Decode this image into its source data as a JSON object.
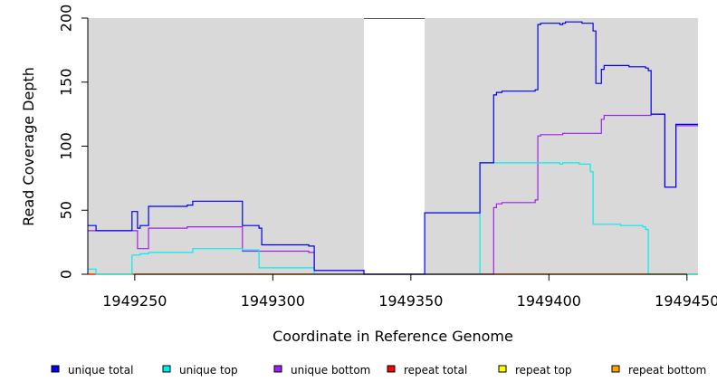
{
  "chart_data": {
    "type": "line",
    "title": "",
    "xlabel": "Coordinate in Reference Genome",
    "ylabel": "Read Coverage Depth",
    "xlim": [
      1949233,
      1949454
    ],
    "ylim": [
      0,
      200
    ],
    "x_ticks": [
      1949250,
      1949300,
      1949350,
      1949400,
      1949450
    ],
    "x_tick_labels": [
      "1949250",
      "1949300",
      "1949350",
      "1949400",
      "1949450"
    ],
    "y_ticks": [
      0,
      50,
      100,
      150,
      200
    ],
    "y_tick_labels": [
      "0",
      "50",
      "100",
      "150",
      "200"
    ],
    "background": "#d9d9d9",
    "grid": false,
    "legend_position": "bottom",
    "uncovered_regions": [
      [
        1949333,
        1949355
      ]
    ],
    "series": [
      {
        "name": "unique total",
        "color": "#0000ee",
        "points": [
          [
            1949233,
            38
          ],
          [
            1949236,
            38
          ],
          [
            1949236,
            34
          ],
          [
            1949249,
            34
          ],
          [
            1949249,
            49
          ],
          [
            1949251,
            49
          ],
          [
            1949251,
            36
          ],
          [
            1949252,
            36
          ],
          [
            1949252,
            38
          ],
          [
            1949255,
            38
          ],
          [
            1949255,
            53
          ],
          [
            1949269,
            53
          ],
          [
            1949269,
            54
          ],
          [
            1949271,
            54
          ],
          [
            1949271,
            57
          ],
          [
            1949289,
            57
          ],
          [
            1949289,
            38
          ],
          [
            1949295,
            38
          ],
          [
            1949295,
            36
          ],
          [
            1949296,
            36
          ],
          [
            1949296,
            23
          ],
          [
            1949313,
            23
          ],
          [
            1949313,
            22
          ],
          [
            1949315,
            22
          ],
          [
            1949315,
            3
          ],
          [
            1949333,
            3
          ],
          [
            1949333,
            0
          ],
          [
            1949355,
            0
          ],
          [
            1949355,
            48
          ],
          [
            1949375,
            48
          ],
          [
            1949375,
            87
          ],
          [
            1949380,
            87
          ],
          [
            1949380,
            140
          ],
          [
            1949381,
            140
          ],
          [
            1949381,
            142
          ],
          [
            1949383,
            142
          ],
          [
            1949383,
            143
          ],
          [
            1949395,
            143
          ],
          [
            1949395,
            144
          ],
          [
            1949396,
            144
          ],
          [
            1949396,
            195
          ],
          [
            1949397,
            195
          ],
          [
            1949397,
            196
          ],
          [
            1949404,
            196
          ],
          [
            1949404,
            195
          ],
          [
            1949405,
            195
          ],
          [
            1949405,
            196
          ],
          [
            1949406,
            196
          ],
          [
            1949406,
            197
          ],
          [
            1949412,
            197
          ],
          [
            1949412,
            196
          ],
          [
            1949416,
            196
          ],
          [
            1949416,
            190
          ],
          [
            1949417,
            190
          ],
          [
            1949417,
            149
          ],
          [
            1949419,
            149
          ],
          [
            1949419,
            160
          ],
          [
            1949420,
            160
          ],
          [
            1949420,
            163
          ],
          [
            1949429,
            163
          ],
          [
            1949429,
            162
          ],
          [
            1949435,
            162
          ],
          [
            1949435,
            161
          ],
          [
            1949436,
            161
          ],
          [
            1949436,
            159
          ],
          [
            1949437,
            159
          ],
          [
            1949437,
            125
          ],
          [
            1949442,
            125
          ],
          [
            1949442,
            68
          ],
          [
            1949446,
            68
          ],
          [
            1949446,
            117
          ],
          [
            1949454,
            117
          ]
        ]
      },
      {
        "name": "unique top",
        "color": "#00eeee",
        "points": [
          [
            1949233,
            4
          ],
          [
            1949236,
            4
          ],
          [
            1949236,
            0
          ],
          [
            1949249,
            0
          ],
          [
            1949249,
            15
          ],
          [
            1949252,
            15
          ],
          [
            1949252,
            16
          ],
          [
            1949255,
            16
          ],
          [
            1949255,
            17
          ],
          [
            1949271,
            17
          ],
          [
            1949271,
            20
          ],
          [
            1949289,
            20
          ],
          [
            1949289,
            19
          ],
          [
            1949295,
            19
          ],
          [
            1949295,
            5
          ],
          [
            1949315,
            5
          ],
          [
            1949315,
            0
          ],
          [
            1949375,
            0
          ],
          [
            1949375,
            87
          ],
          [
            1949404,
            87
          ],
          [
            1949404,
            86
          ],
          [
            1949405,
            86
          ],
          [
            1949405,
            87
          ],
          [
            1949411,
            87
          ],
          [
            1949411,
            86
          ],
          [
            1949415,
            86
          ],
          [
            1949415,
            80
          ],
          [
            1949416,
            80
          ],
          [
            1949416,
            39
          ],
          [
            1949426,
            39
          ],
          [
            1949426,
            38
          ],
          [
            1949434,
            38
          ],
          [
            1949434,
            37
          ],
          [
            1949435,
            37
          ],
          [
            1949435,
            35
          ],
          [
            1949436,
            35
          ],
          [
            1949436,
            0
          ],
          [
            1949454,
            0
          ]
        ]
      },
      {
        "name": "unique bottom",
        "color": "#a020f0",
        "points": [
          [
            1949233,
            34
          ],
          [
            1949251,
            34
          ],
          [
            1949251,
            20
          ],
          [
            1949255,
            20
          ],
          [
            1949255,
            36
          ],
          [
            1949269,
            36
          ],
          [
            1949269,
            37
          ],
          [
            1949289,
            37
          ],
          [
            1949289,
            18
          ],
          [
            1949313,
            18
          ],
          [
            1949313,
            17
          ],
          [
            1949315,
            17
          ],
          [
            1949315,
            3
          ],
          [
            1949333,
            3
          ],
          [
            1949333,
            0
          ],
          [
            1949380,
            0
          ],
          [
            1949380,
            52
          ],
          [
            1949381,
            52
          ],
          [
            1949381,
            55
          ],
          [
            1949383,
            55
          ],
          [
            1949383,
            56
          ],
          [
            1949395,
            56
          ],
          [
            1949395,
            58
          ],
          [
            1949396,
            58
          ],
          [
            1949396,
            108
          ],
          [
            1949397,
            108
          ],
          [
            1949397,
            109
          ],
          [
            1949405,
            109
          ],
          [
            1949405,
            110
          ],
          [
            1949419,
            110
          ],
          [
            1949419,
            121
          ],
          [
            1949420,
            121
          ],
          [
            1949420,
            124
          ],
          [
            1949437,
            124
          ],
          [
            1949437,
            125
          ],
          [
            1949442,
            125
          ],
          [
            1949442,
            68
          ],
          [
            1949446,
            68
          ],
          [
            1949446,
            116
          ],
          [
            1949454,
            116
          ]
        ]
      },
      {
        "name": "repeat total",
        "color": "#ff0000",
        "points": [
          [
            1949233,
            0
          ],
          [
            1949333,
            0
          ],
          [
            1949333,
            0
          ],
          [
            1949355,
            0
          ],
          [
            1949355,
            0
          ],
          [
            1949454,
            0
          ]
        ]
      },
      {
        "name": "repeat top",
        "color": "#ffff00",
        "points": [
          [
            1949233,
            0
          ],
          [
            1949333,
            0
          ],
          [
            1949333,
            0
          ],
          [
            1949355,
            0
          ],
          [
            1949355,
            0
          ],
          [
            1949454,
            0
          ]
        ]
      },
      {
        "name": "repeat bottom",
        "color": "#ffa500",
        "points": [
          [
            1949233,
            0
          ],
          [
            1949333,
            0
          ],
          [
            1949333,
            0
          ],
          [
            1949355,
            0
          ],
          [
            1949355,
            0
          ],
          [
            1949454,
            0
          ]
        ]
      }
    ]
  }
}
